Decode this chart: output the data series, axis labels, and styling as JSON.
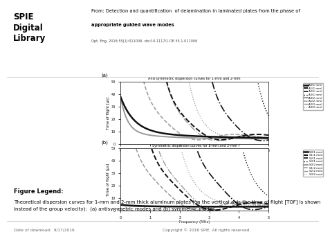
{
  "background_color": "#ffffff",
  "header": {
    "title_line1": "From: Detection and quantification  of delamination in laminated plates from the phase of",
    "title_line2": "appropriate guided wave modes",
    "doi_line": "Opt. Eng. 2016;55(1):011006. doi:10.1117/1.OE.55.1.011006"
  },
  "plot_a_title": "Anti symmetric dispersion curves for 1-mm and 2-mm",
  "plot_b_title": "Symmetric dispersion curves for 1-mm and 2-mm",
  "xlabel": "Frequency (MHz)",
  "ylabel": "Time of flight [µs]",
  "xlim": [
    0,
    5
  ],
  "ylim_a": [
    0,
    50
  ],
  "ylim_b": [
    0,
    50
  ],
  "legend_a": [
    "A0(1 mm)",
    "A1(1 mm)",
    "A2(1 mm)",
    "A3(1 mm)",
    "A0(2 mm)",
    "A1(2 mm)",
    "A2(2 mm)",
    "A3(2 mm)"
  ],
  "legend_b": [
    "S0(1 mm)",
    "S1(1 mm)",
    "S2(1 mm)",
    "S3(1 mm)",
    "S0(2 mm)",
    "S1(2 mm)",
    "S2(2 mm)",
    "S3(2 mm)"
  ],
  "figure_legend_title": "Figure Legend:",
  "figure_legend_text": "Theoretical dispersion curves for 1-mm and 2-mm thick aluminum plates (on the vertical axis the time of flight [TOF] is shown\ninstead of the group velocity):  (a) antisymmetric modes and (b) symmetric modes.",
  "footer_left": "Date of download:  9/17/2016",
  "footer_right": "Copyright © 2016 SPIE. All rights reserved."
}
